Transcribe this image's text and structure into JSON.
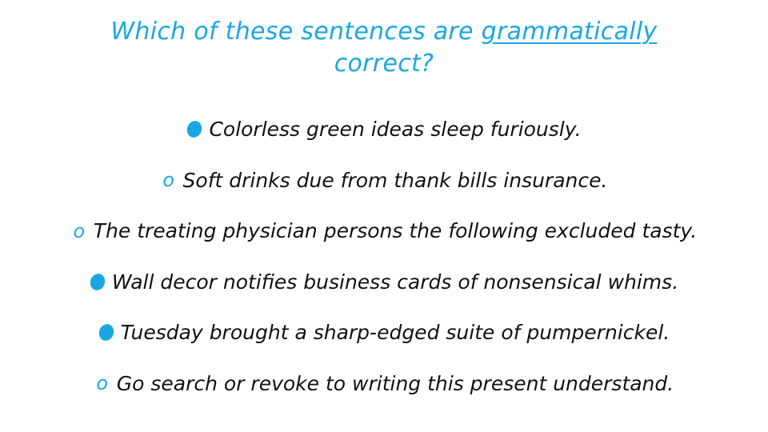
{
  "title": {
    "prefix": "Which of these sentences are ",
    "emphasis": "grammatically",
    "suffix": "correct?"
  },
  "options": [
    {
      "text": "Colorless green ideas sleep furiously.",
      "marker": "filled"
    },
    {
      "text": "Soft drinks due from thank bills insurance.",
      "marker": "hollow"
    },
    {
      "text": "The treating physician persons the following excluded tasty.",
      "marker": "hollow"
    },
    {
      "text": "Wall decor notifies business cards of nonsensical whims.",
      "marker": "filled"
    },
    {
      "text": "Tuesday brought a sharp-edged suite of pumpernickel.",
      "marker": "filled"
    },
    {
      "text": "Go search or revoke to writing this present understand.",
      "marker": "hollow"
    }
  ],
  "hollow_marker_glyph": "o",
  "colors": {
    "accent": "#1aa7e0",
    "text": "#111111",
    "background": "#ffffff"
  }
}
